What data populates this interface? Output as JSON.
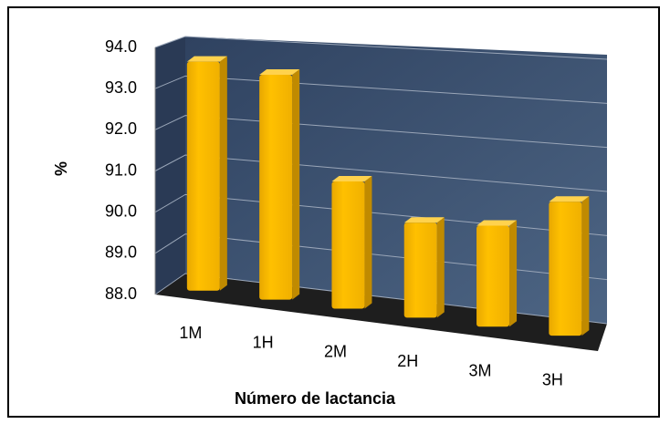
{
  "chart_data": {
    "type": "bar3d",
    "x_label": "Número de lactancia",
    "y_label": "%",
    "categories": [
      "1M",
      "1H",
      "2M",
      "2H",
      "3M",
      "3H"
    ],
    "values": [
      93.6,
      93.4,
      91.0,
      90.2,
      90.3,
      91.0
    ],
    "color": "#ffc000",
    "ylim": [
      88,
      94
    ],
    "yticks": [
      {
        "value": 88,
        "label": "88.0"
      },
      {
        "value": 89,
        "label": "89.0"
      },
      {
        "value": 90,
        "label": "90.0"
      },
      {
        "value": 91,
        "label": "91.0"
      },
      {
        "value": 92,
        "label": "92.0"
      },
      {
        "value": 93,
        "label": "93.0"
      },
      {
        "value": 94,
        "label": "94.0"
      }
    ],
    "grid": true
  }
}
